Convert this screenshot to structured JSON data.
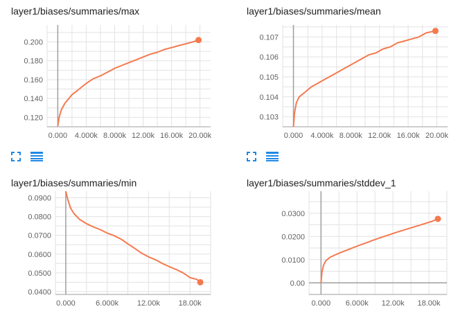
{
  "theme": {
    "line_color": "#f4794e",
    "grid_color": "#e2e2e2",
    "axis_color": "#9e9e9e",
    "zero_line_color": "#9e9e9e",
    "control_color": "#1e88e5"
  },
  "controls": {
    "fullscreen_icon": "fullscreen-icon",
    "data_table_icon": "data-table-icon"
  },
  "chart_data": [
    {
      "type": "line",
      "title": "layer1/biases/summaries/max",
      "xlabel": "",
      "ylabel": "",
      "xlim": [
        -1500,
        21500
      ],
      "ylim": [
        0.11,
        0.218
      ],
      "grid": true,
      "x_ticks": [
        0,
        4000,
        8000,
        12000,
        16000,
        20000
      ],
      "x_tick_labels": [
        "0.000",
        "4.000k",
        "8.000k",
        "12.00k",
        "16.00k",
        "20.00k"
      ],
      "y_ticks": [
        0.12,
        0.14,
        0.16,
        0.18,
        0.2
      ],
      "y_tick_labels": [
        "0.120",
        "0.140",
        "0.160",
        "0.180",
        "0.200"
      ],
      "series": [
        {
          "x": [
            0,
            200,
            500,
            1000,
            2000,
            3000,
            4000,
            5000,
            6000,
            7000,
            8000,
            9000,
            10000,
            11000,
            12000,
            13000,
            14000,
            15000,
            16000,
            17000,
            18000,
            19000,
            19800
          ],
          "y": [
            0.111,
            0.12,
            0.128,
            0.135,
            0.144,
            0.15,
            0.156,
            0.161,
            0.164,
            0.168,
            0.172,
            0.175,
            0.178,
            0.181,
            0.184,
            0.187,
            0.189,
            0.192,
            0.194,
            0.196,
            0.198,
            0.2,
            0.202
          ]
        }
      ],
      "end_marker": true
    },
    {
      "type": "line",
      "title": "layer1/biases/summaries/mean",
      "xlabel": "",
      "ylabel": "",
      "xlim": [
        -1500,
        21500
      ],
      "ylim": [
        0.1025,
        0.1076
      ],
      "grid": true,
      "x_ticks": [
        0,
        4000,
        8000,
        12000,
        16000,
        20000
      ],
      "x_tick_labels": [
        "0.000",
        "4.000k",
        "8.000k",
        "12.00k",
        "16.00k",
        "20.00k"
      ],
      "y_ticks": [
        0.103,
        0.104,
        0.105,
        0.106,
        0.107
      ],
      "y_tick_labels": [
        "0.103",
        "0.104",
        "0.105",
        "0.106",
        "0.107"
      ],
      "series": [
        {
          "x": [
            0,
            150,
            400,
            800,
            1500,
            2500,
            3500,
            4500,
            5500,
            6500,
            7500,
            8500,
            9500,
            10500,
            11500,
            12500,
            13500,
            14500,
            15500,
            16500,
            17500,
            18500,
            19800
          ],
          "y": [
            0.1025,
            0.1032,
            0.1037,
            0.104,
            0.1042,
            0.1045,
            0.1047,
            0.1049,
            0.1051,
            0.1053,
            0.1055,
            0.1057,
            0.1059,
            0.1061,
            0.1062,
            0.1064,
            0.1065,
            0.1067,
            0.1068,
            0.1069,
            0.107,
            0.1072,
            0.1073
          ]
        }
      ],
      "end_marker": true
    },
    {
      "type": "line",
      "title": "layer1/biases/summaries/min",
      "xlabel": "",
      "ylabel": "",
      "xlim": [
        -1500,
        21000
      ],
      "ylim": [
        0.0385,
        0.0935
      ],
      "grid": true,
      "x_ticks": [
        0,
        6000,
        12000,
        18000
      ],
      "x_tick_labels": [
        "0.000",
        "6.000k",
        "12.00k",
        "18.00k"
      ],
      "y_ticks": [
        0.04,
        0.05,
        0.06,
        0.07,
        0.08,
        0.09
      ],
      "y_tick_labels": [
        "0.0400",
        "0.0500",
        "0.0600",
        "0.0700",
        "0.0800",
        "0.0900"
      ],
      "series": [
        {
          "x": [
            0,
            300,
            700,
            1200,
            2000,
            3000,
            4000,
            5000,
            6000,
            7000,
            8000,
            9000,
            10000,
            11000,
            12000,
            13000,
            14000,
            15000,
            16000,
            17000,
            18000,
            19000,
            19500
          ],
          "y": [
            0.0935,
            0.089,
            0.0845,
            0.0815,
            0.0785,
            0.0762,
            0.0745,
            0.073,
            0.0712,
            0.0698,
            0.068,
            0.0655,
            0.063,
            0.0605,
            0.0585,
            0.057,
            0.055,
            0.0533,
            0.0518,
            0.05,
            0.0475,
            0.0465,
            0.045
          ]
        }
      ],
      "end_marker": true
    },
    {
      "type": "line",
      "title": "layer1/biases/summaries/stddev_1",
      "xlabel": "",
      "ylabel": "",
      "xlim": [
        -2000,
        21000
      ],
      "ylim": [
        -0.005,
        0.0395
      ],
      "grid": true,
      "x_ticks": [
        0,
        6000,
        12000,
        18000
      ],
      "x_tick_labels": [
        "0.000",
        "6.000k",
        "12.00k",
        "18.00k"
      ],
      "y_ticks": [
        0.0,
        0.01,
        0.02,
        0.03
      ],
      "y_tick_labels": [
        "0.00",
        "0.0100",
        "0.0200",
        "0.0300"
      ],
      "series": [
        {
          "x": [
            0,
            150,
            400,
            800,
            1500,
            2500,
            3500,
            4500,
            5500,
            6500,
            7500,
            8500,
            9500,
            10500,
            11500,
            12500,
            13500,
            14500,
            15500,
            16500,
            17500,
            18500,
            19500
          ],
          "y": [
            0.0,
            0.0045,
            0.0075,
            0.0095,
            0.011,
            0.0122,
            0.0133,
            0.0143,
            0.0153,
            0.0163,
            0.0172,
            0.0182,
            0.0191,
            0.02,
            0.0208,
            0.0217,
            0.0225,
            0.0233,
            0.0241,
            0.0249,
            0.0257,
            0.0265,
            0.0276
          ]
        }
      ],
      "end_marker": true
    }
  ]
}
